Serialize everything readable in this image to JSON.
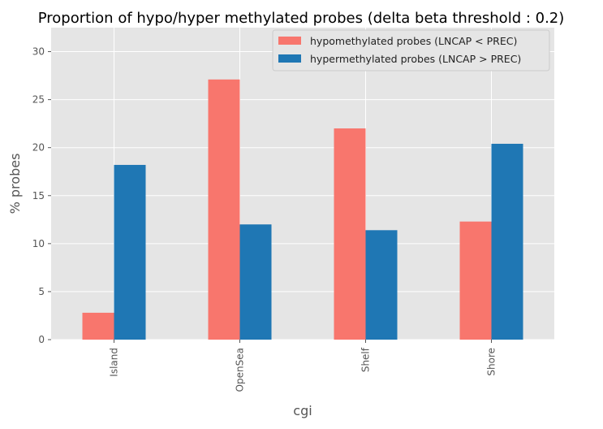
{
  "chart_data": {
    "type": "bar",
    "title": "Proportion of hypo/hyper methylated probes (delta beta threshold : 0.2)",
    "xlabel": "cgi",
    "ylabel": "% probes",
    "categories": [
      "Island",
      "OpenSea",
      "Shelf",
      "Shore"
    ],
    "series": [
      {
        "name": "hypomethylated probes (LNCAP < PREC)",
        "color": "#f8766d",
        "values": [
          2.8,
          27.1,
          22.0,
          12.3
        ]
      },
      {
        "name": "hypermethylated probes (LNCAP > PREC)",
        "color": "#1f77b4",
        "values": [
          18.2,
          12.0,
          11.4,
          20.4
        ]
      }
    ],
    "ylim": [
      0,
      32.5
    ],
    "yticks": [
      0,
      5,
      10,
      15,
      20,
      25,
      30
    ],
    "ytick_labels": [
      "0",
      "5",
      "10",
      "15",
      "20",
      "25",
      "30"
    ],
    "grid": true,
    "legend_position": "top-right",
    "background_color": "#e5e5e5",
    "grid_color": "#ffffff"
  }
}
